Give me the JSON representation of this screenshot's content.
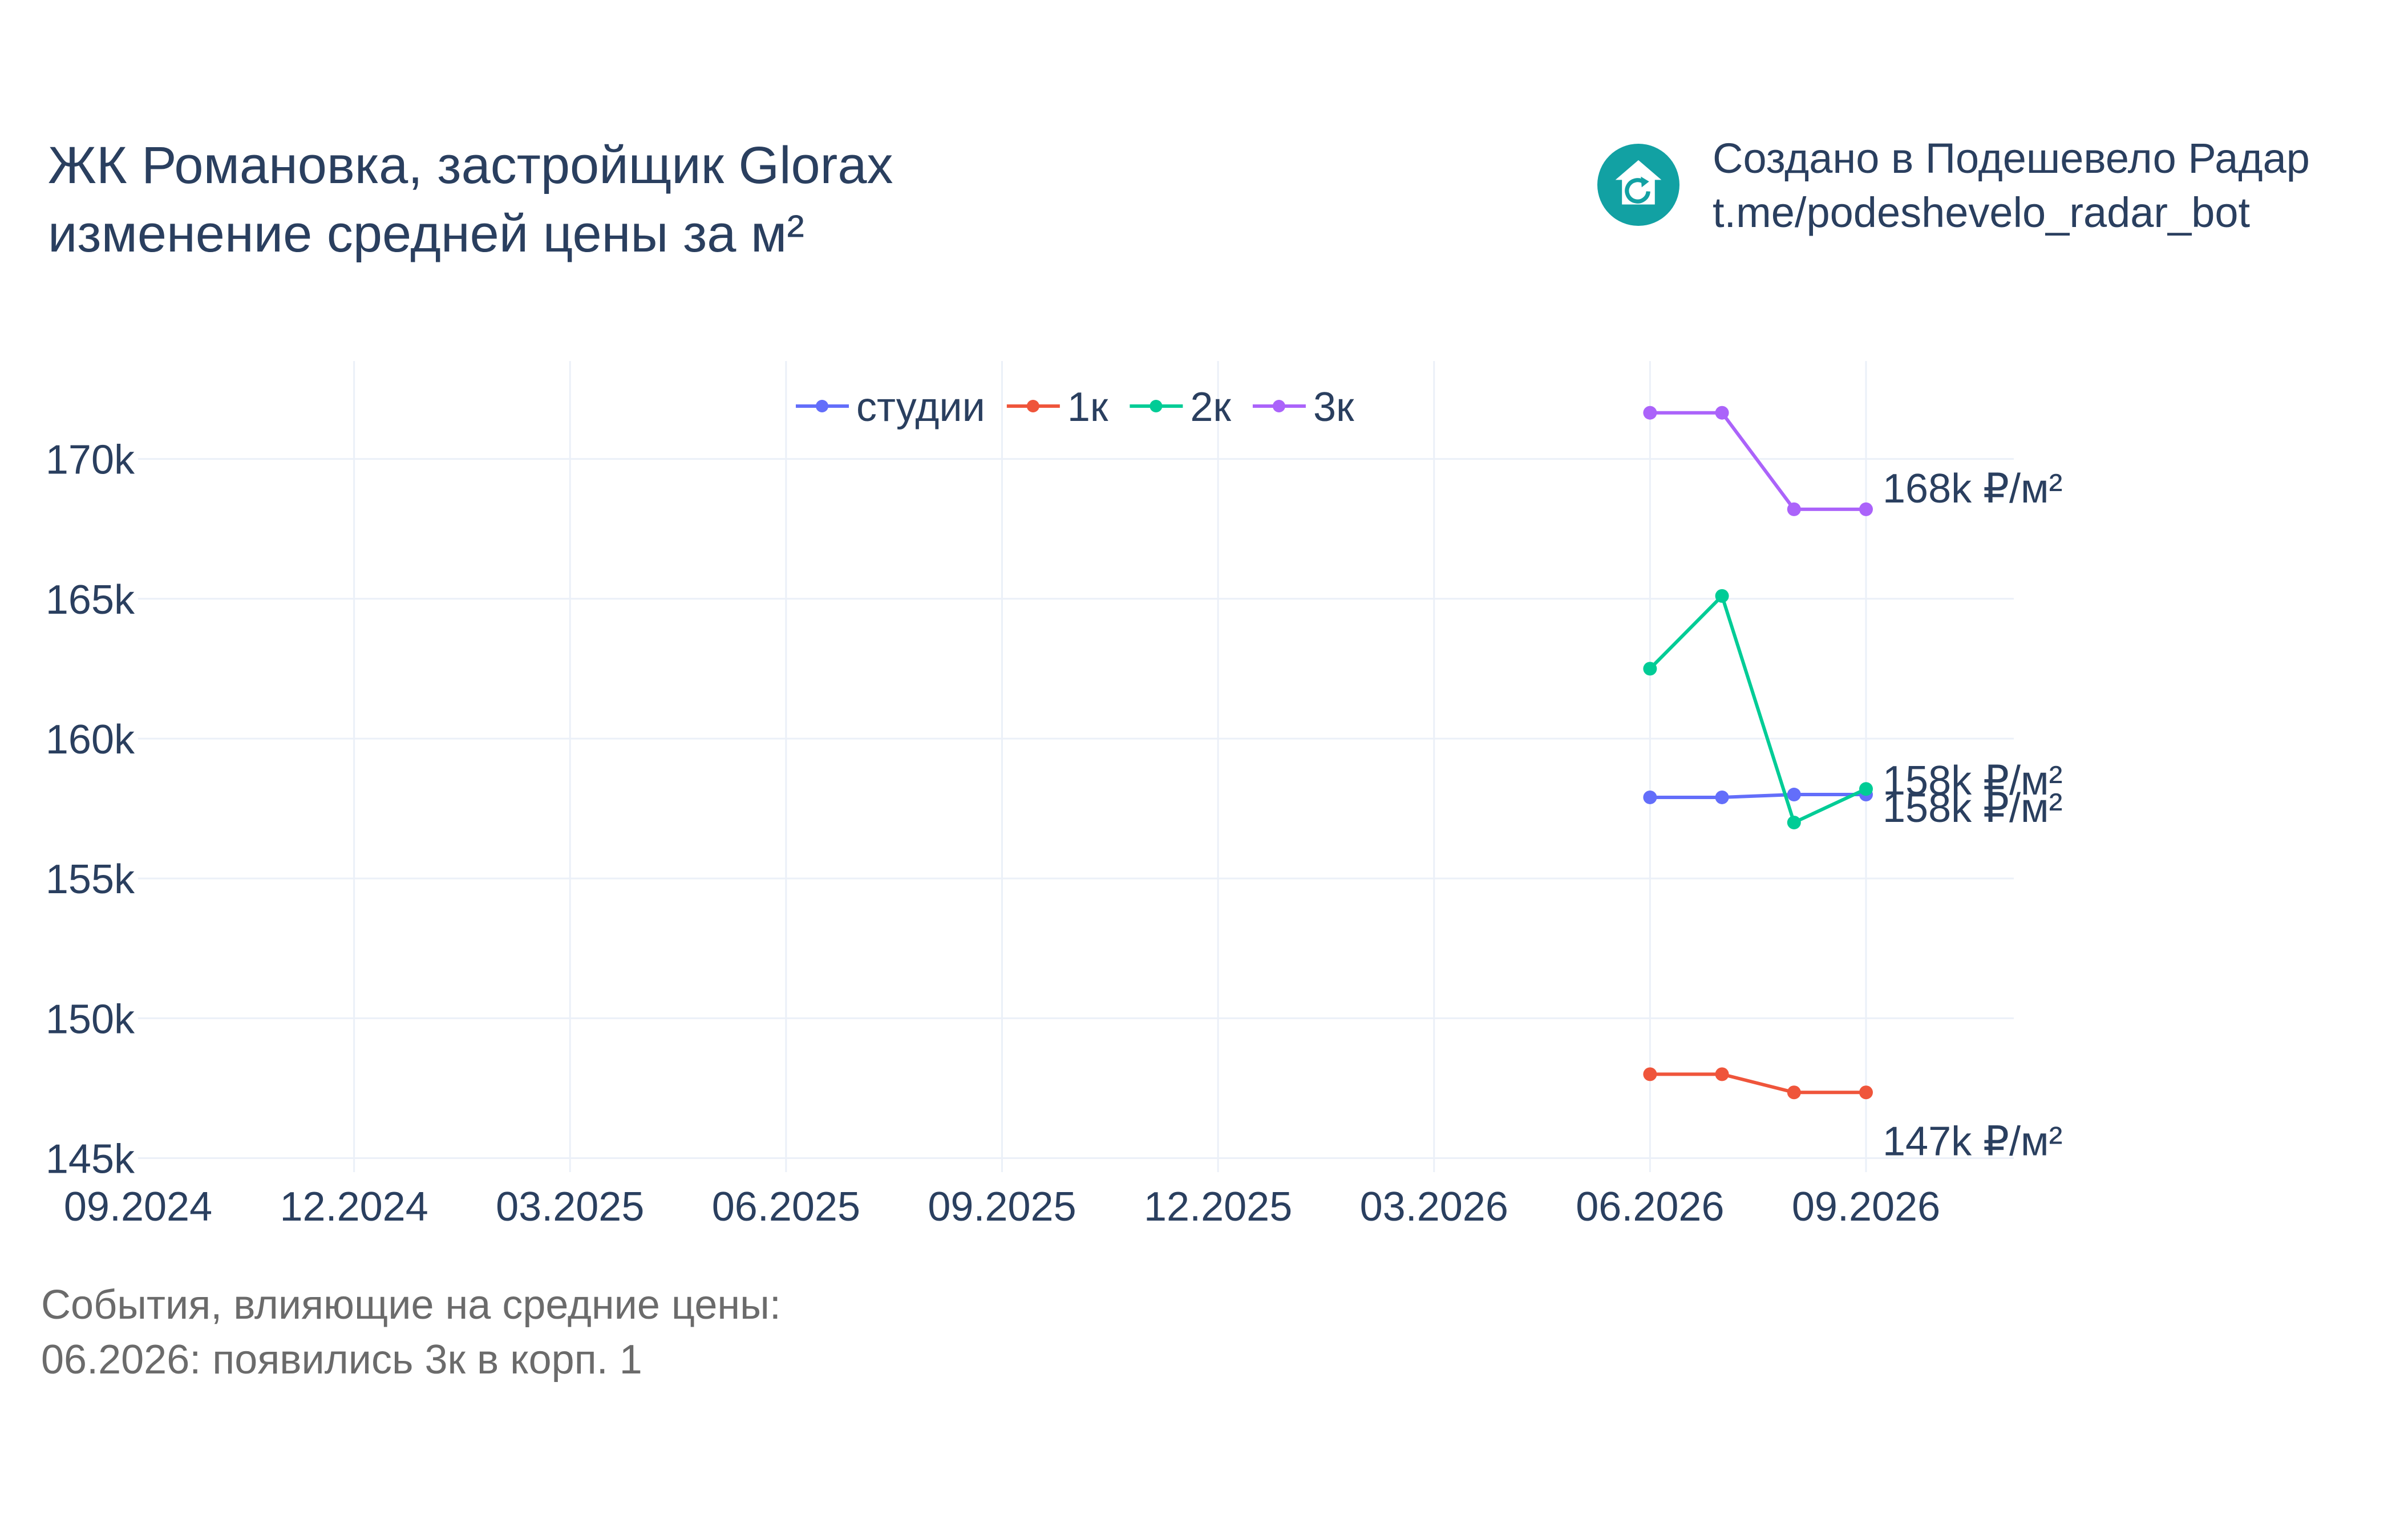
{
  "title": {
    "line1": "ЖК Романовка, застройщик Glorax",
    "line2": "изменение средней цены за м²"
  },
  "brand": {
    "line1": "Создано в Подешевело Радар",
    "line2": "t.me/podeshevelo_radar_bot",
    "logo_icon": "house-refresh-icon",
    "logo_color": "#12a1a3"
  },
  "events": {
    "heading": "События, влияющие на средние цены:",
    "items": [
      "06.2026: появились 3к в корп. 1"
    ]
  },
  "chart_data": {
    "type": "line",
    "x": [
      "09.2024",
      "12.2024",
      "03.2025",
      "06.2025",
      "09.2025",
      "12.2025",
      "03.2026",
      "06.2026",
      "09.2026"
    ],
    "xlim": [
      "2024-09",
      "2026-09"
    ],
    "x_ticks": [
      "09.2024",
      "12.2024",
      "03.2025",
      "06.2025",
      "09.2025",
      "12.2025",
      "03.2026",
      "06.2026",
      "09.2026"
    ],
    "ylim": [
      144500,
      173500
    ],
    "y_ticks": [
      145000,
      150000,
      155000,
      160000,
      165000,
      170000
    ],
    "y_tick_labels": [
      "145k",
      "150k",
      "155k",
      "160k",
      "165k",
      "170k"
    ],
    "grid": true,
    "legend_position": "top-center",
    "series": [
      {
        "name": "студии",
        "color": "#636efa",
        "points": [
          [
            "2026-06",
            157900
          ],
          [
            "2026-07",
            157900
          ],
          [
            "2026-08",
            158000
          ],
          [
            "2026-09",
            158000
          ]
        ],
        "end_label": "158k ₽/м²"
      },
      {
        "name": "1к",
        "color": "#ef553b",
        "points": [
          [
            "2026-06",
            148000
          ],
          [
            "2026-07",
            148000
          ],
          [
            "2026-08",
            147350
          ],
          [
            "2026-09",
            147350
          ]
        ],
        "end_label": "147k ₽/м²"
      },
      {
        "name": "2к",
        "color": "#00cc96",
        "points": [
          [
            "2026-06",
            162500
          ],
          [
            "2026-07",
            165100
          ],
          [
            "2026-08",
            157000
          ],
          [
            "2026-09",
            158200
          ]
        ],
        "end_label": "158k ₽/м²"
      },
      {
        "name": "3к",
        "color": "#ab63fa",
        "points": [
          [
            "2026-06",
            171650
          ],
          [
            "2026-07",
            171650
          ],
          [
            "2026-08",
            168200
          ],
          [
            "2026-09",
            168200
          ]
        ],
        "end_label": "168k ₽/м²"
      }
    ]
  }
}
